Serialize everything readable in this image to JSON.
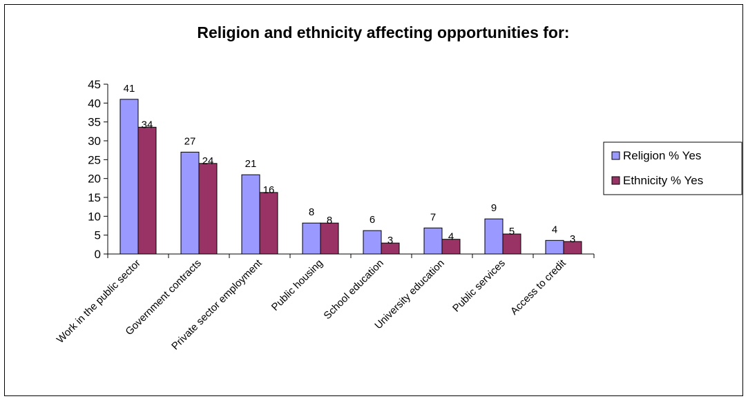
{
  "chart_data": {
    "type": "bar",
    "title": "Religion and ethnicity affecting opportunities for:",
    "categories": [
      "Work in the public sector",
      "Government contracts",
      "Private sector employment",
      "Public housing",
      "School education",
      "University education",
      "Public services",
      "Access to credit"
    ],
    "series": [
      {
        "name": "Religion % Yes",
        "color": "#9999FF",
        "values": [
          41,
          27,
          21,
          8,
          6,
          7,
          9,
          4
        ],
        "plot_values": [
          41,
          27,
          21,
          8.2,
          6.2,
          6.9,
          9.3,
          3.6
        ],
        "labels": [
          "41",
          "27",
          "21",
          "8",
          "6",
          "7",
          "9",
          "4"
        ]
      },
      {
        "name": "Ethnicity % Yes",
        "color": "#993366",
        "values": [
          34,
          24,
          16,
          8,
          3,
          4,
          5,
          3
        ],
        "plot_values": [
          33.6,
          24,
          16.3,
          8.2,
          2.9,
          3.9,
          5.3,
          3.3
        ],
        "labels": [
          "34",
          "24",
          "16",
          "8",
          "3",
          "4",
          "5",
          "3"
        ]
      }
    ],
    "yticks": [
      "0",
      "5",
      "10",
      "15",
      "20",
      "25",
      "30",
      "35",
      "40",
      "45"
    ],
    "ylim": [
      0,
      45
    ],
    "ystep": 5,
    "xlabel": "",
    "ylabel": "",
    "grid": false,
    "legend_position": "right"
  }
}
